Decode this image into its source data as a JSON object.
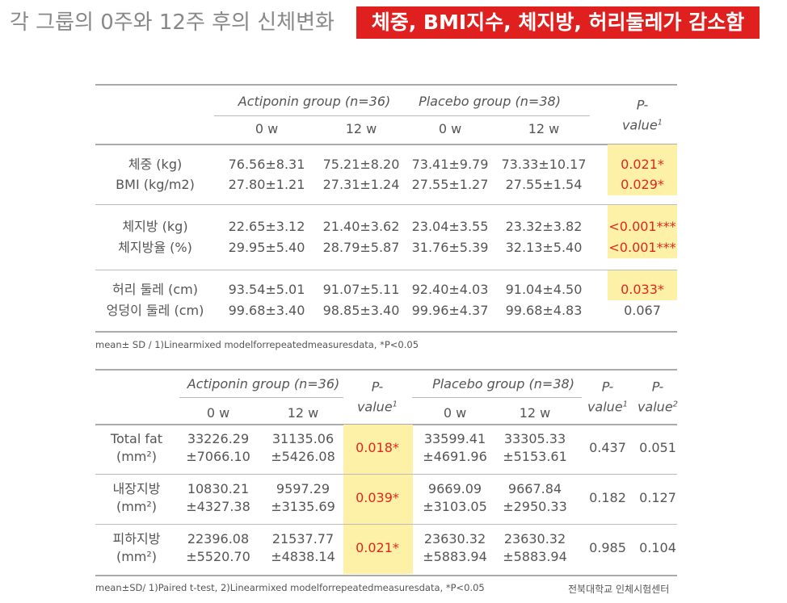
{
  "header": {
    "title": "각 그룹의 0주와 12주 후의 신체변화",
    "highlight": "체중, BMI지수, 체지방, 허리둘레가 감소함"
  },
  "table1": {
    "groups": [
      "Actiponin group (n=36)",
      "Placebo group (n=38)"
    ],
    "p_header": {
      "text": "P-value",
      "sup": "1"
    },
    "subheaders": [
      "0 w",
      "12 w",
      "0 w",
      "12 w"
    ],
    "sections": [
      [
        [
          "체중 (kg)",
          "76.56±8.31",
          "75.21±8.20",
          "73.41±9.79",
          "73.33±10.17",
          "0.021*"
        ],
        [
          "BMI (kg/m2)",
          "27.80±1.21",
          "27.31±1.24",
          "27.55±1.27",
          "27.55±1.54",
          "0.029*"
        ]
      ],
      [
        [
          "체지방 (kg)",
          "22.65±3.12",
          "21.40±3.62",
          "23.04±3.55",
          "23.32±3.82",
          "<0.001***"
        ],
        [
          "체지방율 (%)",
          "29.95±5.40",
          "28.79±5.87",
          "31.76±5.39",
          "32.13±5.40",
          "<0.001***"
        ]
      ],
      [
        [
          "허리 둘레 (cm)",
          "93.54±5.01",
          "91.07±5.11",
          "92.40±4.03",
          "91.04±4.50",
          "0.033*"
        ],
        [
          "엉덩이 둘레 (cm)",
          "99.68±3.40",
          "98.85±3.40",
          "99.96±4.37",
          "99.68±4.83",
          "0.067"
        ]
      ]
    ],
    "note": "mean± SD / 1)Linearmixed modelforrepeatedmeasuresdata, *P<0.05"
  },
  "table2": {
    "groups": [
      "Actiponin group (n=36)",
      "Placebo group (n=38)"
    ],
    "p_headers": [
      {
        "text": "P-value",
        "sup": "1"
      },
      {
        "text": "P-value",
        "sup": "1"
      },
      {
        "text": "P-value",
        "sup": "2"
      }
    ],
    "subheaders": [
      "0 w",
      "12 w",
      "0 w",
      "12 w"
    ],
    "rows": [
      [
        "Total fat\n(mm²)",
        "33226.29\n±7066.10",
        "31135.06\n±5426.08",
        "0.018*",
        "33599.41\n±4691.96",
        "33305.33\n±5153.61",
        "0.437",
        "0.051"
      ],
      [
        "내장지방\n(mm²)",
        "10830.21\n±4327.38",
        "9597.29\n±3135.69",
        "0.039*",
        "9669.09\n±3103.05",
        "9667.84\n±2950.33",
        "0.182",
        "0.127"
      ],
      [
        "피하지방\n(mm²)",
        "22396.08\n±5520.70",
        "21537.77\n±4838.14",
        "0.021*",
        "23630.32\n±5883.94",
        "23630.32\n±5883.94",
        "0.985",
        "0.104"
      ]
    ],
    "note": "mean±SD/ 1)Paired t-test, 2)Linearmixed modelforrepeatedmeasuresdata, *P<0.05"
  },
  "source": "전북대학교 인체시험센터"
}
